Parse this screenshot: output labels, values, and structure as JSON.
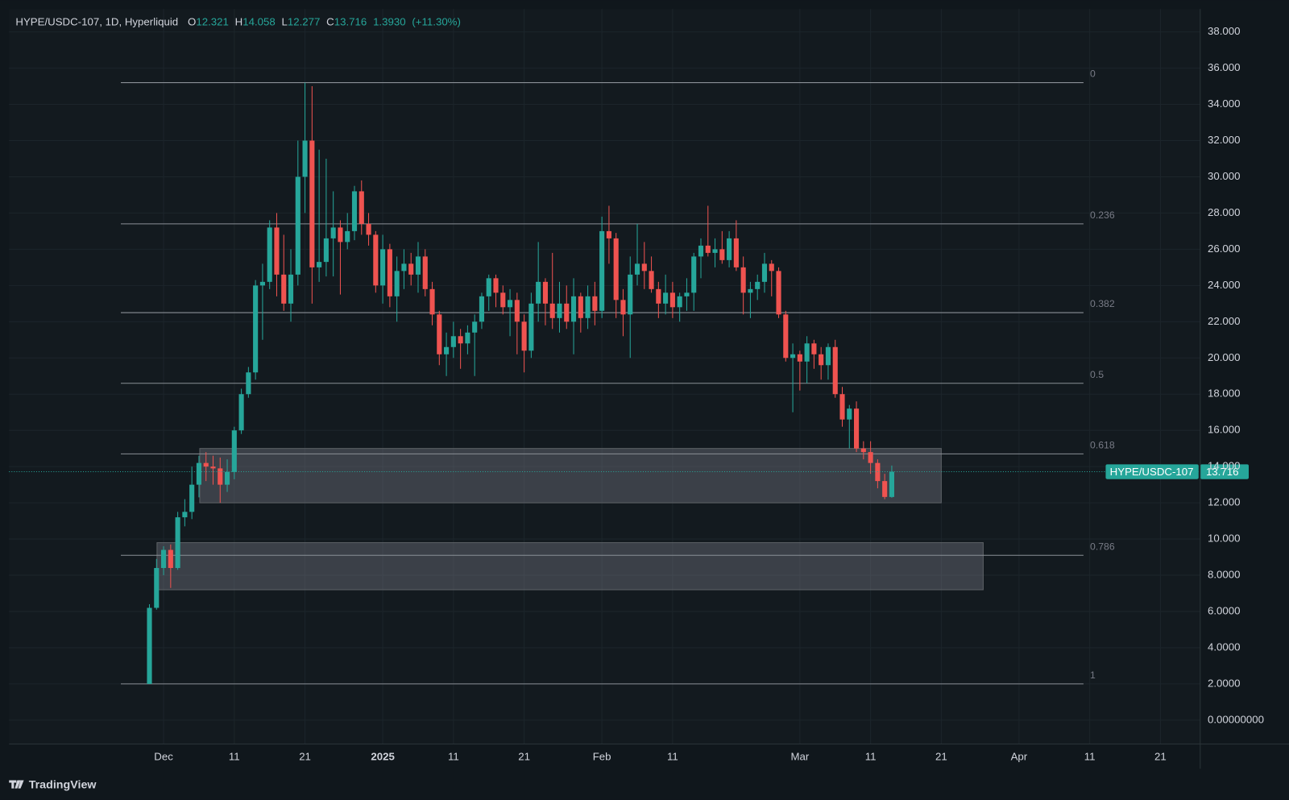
{
  "chart_data": {
    "type": "candlestick",
    "title": "HYPE/USDC-107, 1D, Hyperliquid",
    "symbol": "HYPE/USDC-107",
    "header_ohlc": [
      {
        "label": "O",
        "value": 12.321
      },
      {
        "label": "H",
        "value": 14.058
      },
      {
        "label": "L",
        "value": 12.277
      },
      {
        "label": "C",
        "value": 13.716
      }
    ],
    "header_change": {
      "value": 1.393,
      "label": "1.3930"
    },
    "header_change_percent": {
      "value": 11.3,
      "label": "(+11.30%)"
    },
    "footer": "TradingView",
    "up_color": "#26a69a",
    "down_color": "#ef5350",
    "grid": true,
    "categories": [
      null,
      null,
      "Dec",
      null,
      null,
      null,
      null,
      null,
      null,
      null,
      null,
      null,
      "11",
      null,
      null,
      null,
      null,
      null,
      null,
      null,
      null,
      null,
      "21",
      null,
      null,
      null,
      null,
      null,
      null,
      null,
      null,
      null,
      null,
      "2025",
      null,
      null,
      null,
      null,
      null,
      null,
      null,
      null,
      null,
      "11",
      null,
      null,
      null,
      null,
      null,
      null,
      null,
      null,
      null,
      "21",
      null,
      null,
      null,
      null,
      null,
      null,
      null,
      null,
      null,
      null,
      "Feb",
      null,
      null,
      null,
      null,
      null,
      null,
      null,
      null,
      null,
      "11",
      null,
      null,
      null,
      null,
      null,
      null,
      null,
      null,
      null,
      null,
      null,
      null,
      null,
      null,
      null,
      null,
      null,
      "Mar",
      null,
      null,
      null,
      null,
      null,
      null,
      null,
      null,
      null,
      "11",
      null,
      null,
      null,
      null,
      null,
      null,
      null,
      null,
      null,
      "21",
      null,
      null,
      null,
      null,
      null,
      null,
      null,
      null,
      null,
      null,
      "Apr",
      null,
      null,
      null,
      null,
      null,
      null,
      null,
      null,
      null,
      "11",
      null,
      null,
      null,
      null,
      null,
      null,
      null,
      null,
      null,
      "21"
    ],
    "open": [
      2.0,
      6.2,
      8.4,
      9.4,
      8.4,
      11.2,
      11.5,
      13.0,
      14.2,
      14.0,
      13.9,
      13.0,
      13.7,
      16.0,
      18.0,
      19.2,
      24.0,
      24.2,
      27.2,
      24.6,
      23.0,
      24.6,
      30.0,
      32.0,
      25.0,
      25.3,
      26.6,
      27.2,
      26.4,
      27.0,
      29.2,
      27.4,
      26.8,
      24.0,
      26.0,
      23.4,
      24.8,
      25.2,
      24.6,
      25.6,
      23.8,
      22.4,
      20.2,
      20.6,
      21.2,
      20.8,
      21.4,
      22.0,
      23.4,
      24.4,
      23.6,
      22.8,
      23.2,
      22.0,
      20.4,
      23.0,
      24.2,
      23.0,
      22.2,
      23.0,
      22.0,
      23.4,
      22.2,
      23.4,
      22.6,
      27.0,
      26.6,
      23.2,
      22.4,
      24.6,
      25.2,
      24.8,
      23.8,
      23.0,
      23.6,
      22.8,
      23.4,
      23.6,
      25.6,
      26.2,
      25.8,
      26.0,
      25.4,
      26.6,
      25.0,
      23.6,
      23.8,
      24.2,
      25.2,
      24.8,
      22.4,
      20.0,
      20.2,
      19.8,
      20.8,
      20.2,
      19.6,
      20.6,
      18.0,
      16.6,
      17.2,
      15.0,
      14.8,
      14.2,
      13.2,
      12.321,
      null,
      null,
      null,
      null,
      null,
      null,
      null,
      null,
      null,
      null,
      null,
      null,
      null,
      null,
      null,
      null,
      null,
      null,
      null,
      null,
      null,
      null,
      null,
      null,
      null,
      null,
      null,
      null,
      null,
      null,
      null,
      null,
      null,
      null,
      null,
      null,
      null,
      null
    ],
    "high": [
      6.4,
      8.9,
      9.6,
      9.7,
      11.5,
      12.2,
      14.0,
      14.6,
      14.8,
      14.6,
      14.5,
      14.4,
      16.2,
      18.3,
      19.5,
      24.3,
      25.2,
      27.6,
      28.0,
      26.8,
      26.0,
      32.0,
      35.2,
      35.0,
      31.5,
      31.0,
      29.2,
      27.6,
      28.0,
      29.5,
      29.8,
      28.0,
      27.0,
      26.8,
      26.3,
      25.6,
      26.0,
      25.8,
      26.4,
      26.0,
      24.2,
      22.6,
      21.4,
      22.0,
      21.6,
      21.8,
      22.4,
      23.6,
      24.6,
      24.6,
      24.0,
      23.8,
      23.6,
      22.4,
      23.6,
      26.4,
      24.4,
      25.8,
      24.2,
      24.0,
      24.4,
      23.6,
      24.0,
      24.2,
      27.8,
      28.4,
      26.9,
      23.8,
      25.6,
      27.4,
      26.4,
      25.6,
      24.2,
      24.6,
      24.2,
      23.6,
      24.4,
      25.8,
      26.6,
      28.4,
      26.6,
      27.0,
      27.0,
      27.6,
      25.6,
      24.2,
      24.6,
      25.8,
      25.4,
      25.0,
      22.6,
      20.8,
      20.4,
      21.2,
      21.0,
      20.6,
      20.8,
      21.0,
      18.4,
      17.4,
      17.6,
      15.4,
      15.4,
      14.4,
      13.6,
      14.058,
      null,
      null,
      null,
      null,
      null,
      null,
      null,
      null,
      null,
      null,
      null,
      null,
      null,
      null,
      null,
      null,
      null,
      null,
      null,
      null,
      null,
      null,
      null,
      null,
      null,
      null,
      null,
      null,
      null,
      null,
      null,
      null,
      null,
      null,
      null,
      null,
      null,
      null
    ],
    "low": [
      2.0,
      6.1,
      8.0,
      7.3,
      8.3,
      10.7,
      11.1,
      12.3,
      13.2,
      13.0,
      12.0,
      12.6,
      13.3,
      15.8,
      17.8,
      18.8,
      21.0,
      23.8,
      23.4,
      22.6,
      22.0,
      24.0,
      28.0,
      23.0,
      24.2,
      24.5,
      24.5,
      23.5,
      26.0,
      26.5,
      26.8,
      26.2,
      23.6,
      23.0,
      22.8,
      22.0,
      23.8,
      24.0,
      23.6,
      23.4,
      21.8,
      19.6,
      19.0,
      20.0,
      19.4,
      20.2,
      19.0,
      21.6,
      22.6,
      22.8,
      22.4,
      21.2,
      20.2,
      19.2,
      20.0,
      22.0,
      21.8,
      21.6,
      21.4,
      21.6,
      20.2,
      21.4,
      21.6,
      21.8,
      22.2,
      25.2,
      22.2,
      21.2,
      20.0,
      24.0,
      23.8,
      23.6,
      22.2,
      22.4,
      22.2,
      22.0,
      22.6,
      22.6,
      24.4,
      25.6,
      25.0,
      25.2,
      25.0,
      24.8,
      22.4,
      22.2,
      23.2,
      23.6,
      23.4,
      22.2,
      19.8,
      17.0,
      18.2,
      18.6,
      19.4,
      18.8,
      18.8,
      17.8,
      16.2,
      15.0,
      14.8,
      14.4,
      13.6,
      12.8,
      12.2,
      12.277,
      null,
      null,
      null,
      null,
      null,
      null,
      null,
      null,
      null,
      null,
      null,
      null,
      null,
      null,
      null,
      null,
      null,
      null,
      null,
      null,
      null,
      null,
      null,
      null,
      null,
      null,
      null,
      null,
      null,
      null,
      null,
      null,
      null,
      null,
      null,
      null,
      null,
      null
    ],
    "close": [
      6.2,
      8.4,
      9.4,
      8.4,
      11.2,
      11.5,
      13.0,
      14.2,
      14.0,
      13.9,
      13.0,
      13.7,
      16.0,
      18.0,
      19.2,
      24.0,
      24.2,
      27.2,
      24.6,
      23.0,
      24.6,
      30.0,
      32.0,
      25.0,
      25.3,
      26.6,
      27.2,
      26.4,
      27.0,
      29.2,
      27.4,
      26.8,
      24.0,
      26.0,
      23.4,
      24.8,
      25.2,
      24.6,
      25.6,
      23.8,
      22.4,
      20.2,
      20.6,
      21.2,
      20.8,
      21.4,
      22.0,
      23.4,
      24.4,
      23.6,
      22.8,
      23.2,
      22.0,
      20.4,
      23.0,
      24.2,
      23.0,
      22.2,
      23.0,
      22.0,
      23.4,
      22.2,
      23.4,
      22.6,
      27.0,
      26.6,
      23.2,
      22.4,
      24.6,
      25.2,
      24.8,
      23.8,
      23.0,
      23.6,
      22.8,
      23.4,
      23.6,
      25.6,
      26.2,
      25.8,
      26.0,
      25.4,
      26.6,
      25.0,
      23.6,
      23.8,
      24.2,
      25.2,
      24.8,
      22.4,
      20.0,
      20.2,
      19.8,
      20.8,
      20.2,
      19.6,
      20.6,
      18.0,
      16.6,
      17.2,
      15.0,
      14.8,
      14.2,
      13.2,
      12.323,
      13.716,
      null,
      null,
      null,
      null,
      null,
      null,
      null,
      null,
      null,
      null,
      null,
      null,
      null,
      null,
      null,
      null,
      null,
      null,
      null,
      null,
      null,
      null,
      null,
      null,
      null,
      null,
      null,
      null,
      null,
      null,
      null,
      null,
      null,
      null,
      null,
      null,
      null,
      null
    ],
    "ylim": [
      -1.32,
      39.26
    ],
    "yticks": [
      {
        "value": 0,
        "label": "0.00000000"
      },
      {
        "value": 2,
        "label": "2.0000"
      },
      {
        "value": 4,
        "label": "4.0000"
      },
      {
        "value": 6,
        "label": "6.0000"
      },
      {
        "value": 8,
        "label": "8.0000"
      },
      {
        "value": 10,
        "label": "10.000"
      },
      {
        "value": 12,
        "label": "12.000"
      },
      {
        "value": 14,
        "label": "14.000"
      },
      {
        "value": 16,
        "label": "16.000"
      },
      {
        "value": 18,
        "label": "18.000"
      },
      {
        "value": 20,
        "label": "20.000"
      },
      {
        "value": 22,
        "label": "22.000"
      },
      {
        "value": 24,
        "label": "24.000"
      },
      {
        "value": 26,
        "label": "26.000"
      },
      {
        "value": 28,
        "label": "28.000"
      },
      {
        "value": 30,
        "label": "30.000"
      },
      {
        "value": 32,
        "label": "32.000"
      },
      {
        "value": 34,
        "label": "34.000"
      },
      {
        "value": 36,
        "label": "36.000"
      },
      {
        "value": 38,
        "label": "38.000"
      }
    ],
    "fib_levels": [
      0,
      0.236,
      0.382,
      0.5,
      0.618,
      0.786,
      1
    ],
    "fib_prices": [
      35.2,
      27.4,
      22.5,
      18.6,
      14.7,
      9.1,
      2.0
    ],
    "zones": [
      {
        "low": 12.0,
        "high": 15.0
      },
      {
        "low": 7.2,
        "high": 9.8
      }
    ]
  }
}
